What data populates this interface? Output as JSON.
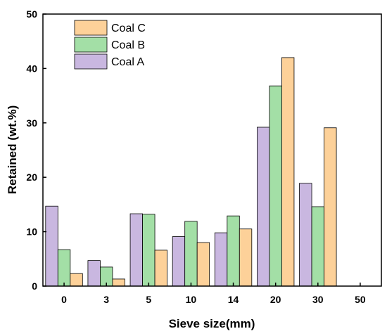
{
  "chart_data": {
    "type": "bar",
    "title": "",
    "xlabel": "Sieve size(mm)",
    "ylabel": "Retained (wt.%)",
    "ylim": [
      0,
      50
    ],
    "yticks": [
      "0",
      "10",
      "20",
      "30",
      "40",
      "50"
    ],
    "categories": [
      "0",
      "3",
      "5",
      "10",
      "14",
      "20",
      "30",
      "50"
    ],
    "grid": false,
    "legend_position": "top-left",
    "series": [
      {
        "name": "Coal A",
        "color": "#c9b7e0",
        "values": [
          14.7,
          4.7,
          13.3,
          9.1,
          9.8,
          29.2,
          18.9,
          0
        ]
      },
      {
        "name": "Coal B",
        "color": "#a3dfa6",
        "values": [
          6.7,
          3.5,
          13.2,
          11.9,
          12.9,
          36.8,
          14.6,
          0
        ]
      },
      {
        "name": "Coal C",
        "color": "#fdd199",
        "values": [
          2.3,
          1.3,
          6.6,
          8.0,
          10.5,
          42.0,
          29.1,
          0
        ]
      }
    ],
    "legend_order": [
      "Coal C",
      "Coal B",
      "Coal A"
    ]
  }
}
